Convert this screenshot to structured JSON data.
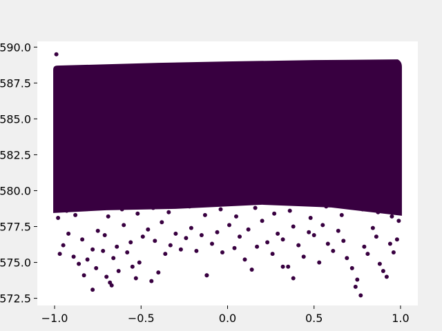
{
  "chart_data": {
    "type": "scatter",
    "title": "",
    "xlabel": "",
    "ylabel": "",
    "xlim": [
      -1.1,
      1.1
    ],
    "ylim": [
      572.0,
      590.4
    ],
    "x_ticks": [
      -1.0,
      -0.5,
      0.0,
      0.5,
      1.0
    ],
    "x_tick_labels": [
      "−1.0",
      "−0.5",
      "0.0",
      "0.5",
      "1.0"
    ],
    "y_ticks": [
      572.5,
      575.0,
      577.5,
      580.0,
      582.5,
      585.0,
      587.5,
      590.0
    ],
    "y_tick_labels": [
      "572.5",
      "575.0",
      "577.5",
      "580.0",
      "582.5",
      "585.0",
      "587.5",
      "590.0"
    ],
    "grid": false,
    "legend": "none",
    "series": [
      {
        "color": "#380040",
        "dense_region": {
          "x_range": [
            -1.0,
            1.0
          ],
          "y_range": [
            579.5,
            589.0
          ]
        },
        "points": [
          [
            -0.99,
            589.5
          ],
          [
            -0.97,
            575.6
          ],
          [
            -0.95,
            576.2
          ],
          [
            -0.92,
            577.0
          ],
          [
            -0.89,
            575.4
          ],
          [
            -0.86,
            574.9
          ],
          [
            -0.84,
            576.6
          ],
          [
            -0.83,
            574.1
          ],
          [
            -0.81,
            575.2
          ],
          [
            -0.78,
            575.9
          ],
          [
            -0.76,
            574.6
          ],
          [
            -0.75,
            577.2
          ],
          [
            -0.72,
            575.8
          ],
          [
            -0.71,
            576.9
          ],
          [
            -0.7,
            574.0
          ],
          [
            -0.68,
            573.6
          ],
          [
            -0.66,
            575.3
          ],
          [
            -0.64,
            576.1
          ],
          [
            -0.63,
            574.4
          ],
          [
            -0.6,
            577.6
          ],
          [
            -0.58,
            575.7
          ],
          [
            -0.56,
            576.4
          ],
          [
            -0.55,
            574.7
          ],
          [
            -0.53,
            573.9
          ],
          [
            -0.51,
            575.0
          ],
          [
            -0.49,
            576.8
          ],
          [
            -0.46,
            577.3
          ],
          [
            -0.44,
            573.7
          ],
          [
            -0.42,
            576.5
          ],
          [
            -0.4,
            574.3
          ],
          [
            -0.38,
            577.8
          ],
          [
            -0.36,
            575.6
          ],
          [
            -0.33,
            576.2
          ],
          [
            -0.3,
            577.0
          ],
          [
            -0.27,
            575.9
          ],
          [
            -0.24,
            576.7
          ],
          [
            -0.21,
            577.4
          ],
          [
            -0.18,
            575.8
          ],
          [
            -0.15,
            576.9
          ],
          [
            -0.12,
            574.1
          ],
          [
            -0.09,
            576.3
          ],
          [
            -0.06,
            577.1
          ],
          [
            -0.03,
            575.7
          ],
          [
            0.01,
            577.6
          ],
          [
            0.04,
            576.0
          ],
          [
            0.07,
            576.8
          ],
          [
            0.1,
            575.2
          ],
          [
            0.12,
            577.3
          ],
          [
            0.14,
            574.5
          ],
          [
            0.17,
            576.1
          ],
          [
            0.2,
            577.9
          ],
          [
            0.23,
            576.4
          ],
          [
            0.26,
            575.6
          ],
          [
            0.29,
            577.0
          ],
          [
            0.32,
            576.6
          ],
          [
            0.35,
            574.7
          ],
          [
            0.38,
            577.5
          ],
          [
            0.41,
            576.2
          ],
          [
            0.44,
            575.4
          ],
          [
            0.47,
            577.1
          ],
          [
            0.5,
            576.9
          ],
          [
            0.53,
            575.0
          ],
          [
            0.55,
            577.6
          ],
          [
            0.58,
            576.3
          ],
          [
            0.61,
            575.8
          ],
          [
            0.64,
            577.2
          ],
          [
            0.67,
            576.5
          ],
          [
            0.69,
            575.3
          ],
          [
            0.72,
            574.6
          ],
          [
            0.74,
            573.3
          ],
          [
            0.75,
            573.8
          ],
          [
            0.77,
            572.7
          ],
          [
            0.79,
            576.1
          ],
          [
            0.81,
            575.6
          ],
          [
            0.84,
            577.4
          ],
          [
            0.86,
            576.8
          ],
          [
            0.88,
            574.9
          ],
          [
            0.9,
            574.4
          ],
          [
            0.92,
            574.0
          ],
          [
            0.94,
            576.3
          ],
          [
            0.96,
            575.7
          ],
          [
            0.98,
            576.6
          ],
          [
            0.99,
            577.9
          ],
          [
            -0.98,
            578.1
          ],
          [
            -0.93,
            578.6
          ],
          [
            -0.88,
            578.3
          ],
          [
            -0.79,
            578.9
          ],
          [
            -0.69,
            578.2
          ],
          [
            -0.61,
            578.7
          ],
          [
            -0.52,
            578.4
          ],
          [
            -0.43,
            578.8
          ],
          [
            -0.34,
            578.5
          ],
          [
            -0.22,
            578.9
          ],
          [
            -0.13,
            578.3
          ],
          [
            -0.04,
            578.7
          ],
          [
            0.05,
            578.2
          ],
          [
            0.16,
            578.8
          ],
          [
            0.27,
            578.4
          ],
          [
            0.36,
            578.6
          ],
          [
            0.48,
            578.1
          ],
          [
            0.57,
            578.9
          ],
          [
            0.66,
            578.3
          ],
          [
            0.78,
            578.7
          ],
          [
            0.87,
            578.5
          ],
          [
            0.95,
            578.2
          ],
          [
            -0.78,
            573.1
          ],
          [
            -0.67,
            573.4
          ],
          [
            -0.12,
            574.1
          ],
          [
            0.32,
            574.7
          ],
          [
            0.38,
            573.9
          ]
        ]
      }
    ]
  }
}
